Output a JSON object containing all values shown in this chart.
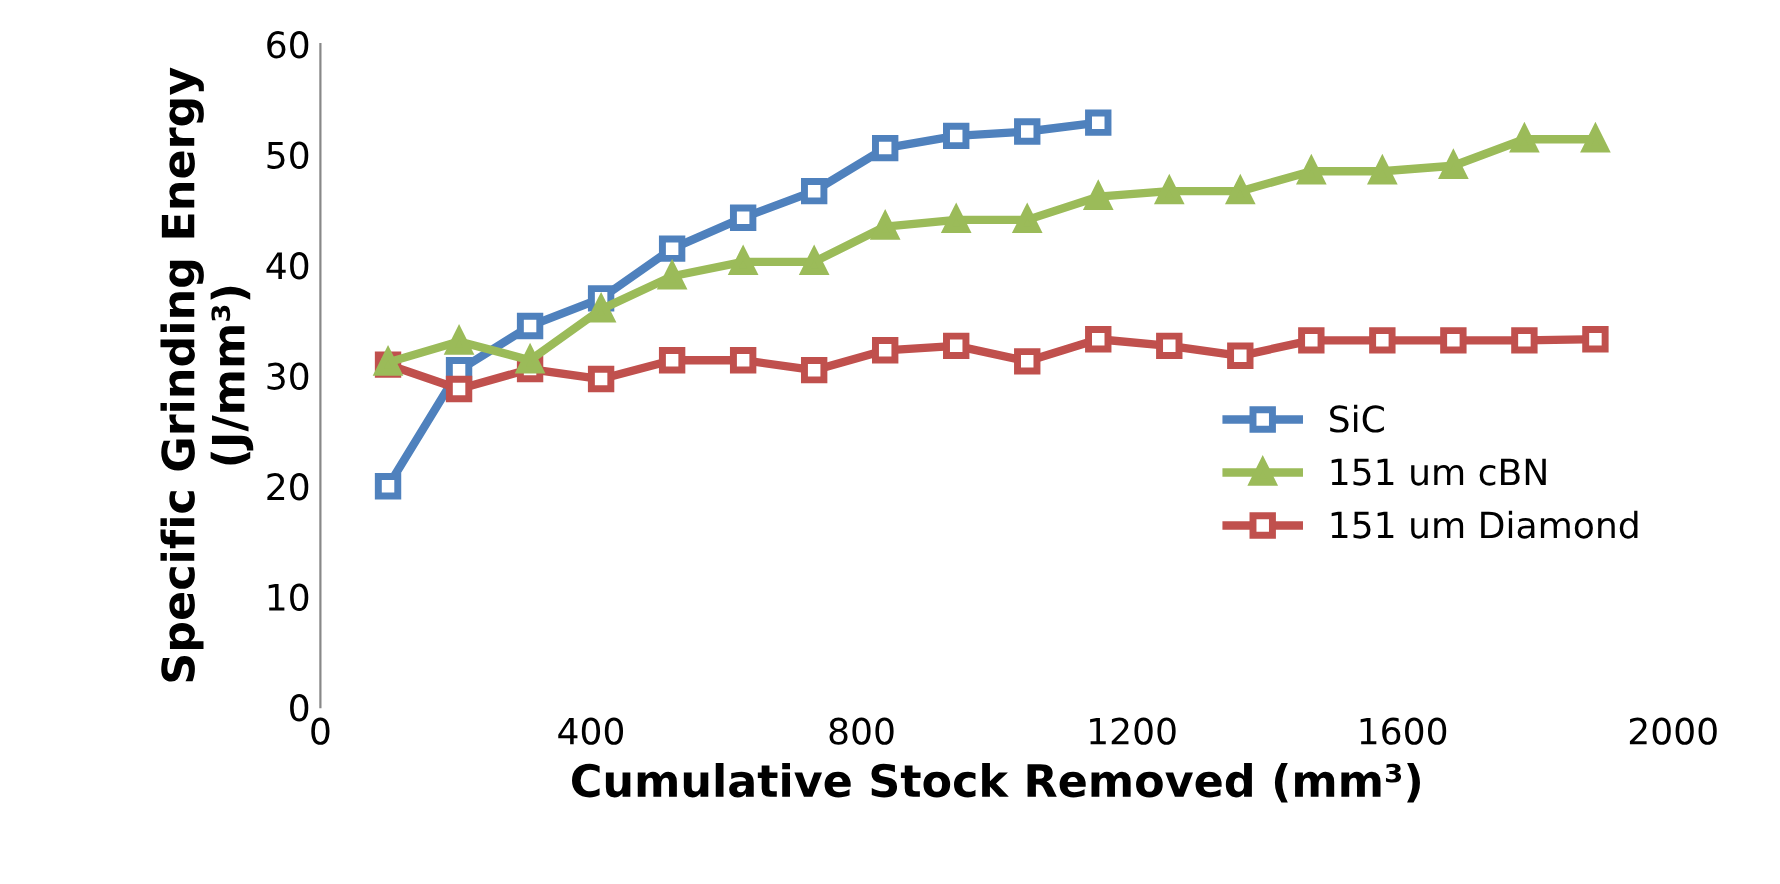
{
  "chart_data": {
    "type": "line",
    "xlabel": "Cumulative Stock Removed (mm³)",
    "ylabel": "Specific Grinding Energy\n(J/mm³)",
    "xlim": [
      0,
      2000
    ],
    "xticks": [
      0,
      400,
      800,
      1200,
      1600,
      2000
    ],
    "ylim": [
      0,
      60
    ],
    "yticks": [
      0,
      10,
      20,
      30,
      40,
      50,
      60
    ],
    "grid": false,
    "legend": "right",
    "line_style": "solid",
    "series": [
      {
        "name": "SiC",
        "color": "#4f81bd",
        "marker": "square",
        "x": [
          100,
          205,
          310,
          415,
          520,
          625,
          730,
          835,
          940,
          1045,
          1150
        ],
        "values": [
          20,
          30.5,
          34.5,
          37,
          41.5,
          44.3,
          46.7,
          50.6,
          51.7,
          52.1,
          52.9
        ]
      },
      {
        "name": "151 um cBN",
        "color": "#9bbb59",
        "marker": "triangle",
        "x": [
          100,
          205,
          310,
          415,
          520,
          625,
          730,
          835,
          940,
          1045,
          1150,
          1255,
          1360,
          1465,
          1570,
          1675,
          1780,
          1885
        ],
        "values": [
          31.2,
          33.1,
          31.4,
          36,
          39,
          40.3,
          40.3,
          43.5,
          44.1,
          44.1,
          46.2,
          46.7,
          46.7,
          48.5,
          48.5,
          49,
          51.4,
          51.4
        ]
      },
      {
        "name": "151 um Diamond",
        "color": "#c0504d",
        "marker": "square",
        "x": [
          100,
          205,
          310,
          415,
          520,
          625,
          730,
          835,
          940,
          1045,
          1150,
          1255,
          1360,
          1465,
          1570,
          1675,
          1780,
          1885
        ],
        "values": [
          31,
          28.8,
          30.6,
          29.7,
          31.4,
          31.4,
          30.5,
          32.3,
          32.7,
          31.3,
          33.3,
          32.7,
          31.8,
          33.2,
          33.2,
          33.2,
          33.2,
          33.3
        ]
      }
    ]
  }
}
